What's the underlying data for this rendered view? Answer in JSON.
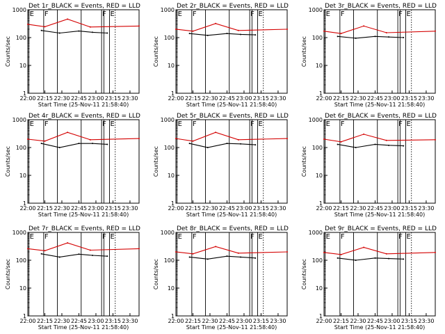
{
  "chart_data": [
    {
      "type": "line",
      "title": "Det 1r_BLACK = Events, RED = LLD",
      "xlabel": "Start Time (25-Nov-11 21:58:40)",
      "ylabel": "Counts/sec",
      "xticks": [
        "22:00",
        "22:15",
        "22:30",
        "22:45",
        "23:00",
        "23:15",
        "23:30"
      ],
      "yticks": [
        "1",
        "10",
        "100",
        "1000"
      ],
      "ylog": true,
      "xlim": [
        "22:00",
        "23:38"
      ],
      "ylim": [
        1,
        1000
      ],
      "markers": [
        "E",
        "F",
        "F",
        "E"
      ],
      "series": [
        {
          "name": "Events",
          "color": "#000000",
          "values": [
            [
              22,
              12,
              180
            ],
            [
              22,
              28,
              145
            ],
            [
              22,
              45,
              172
            ],
            [
              22,
              57,
              155
            ],
            [
              23,
              10,
              145
            ]
          ]
        },
        {
          "name": "LLD",
          "color": "#d40000",
          "values": [
            [
              22,
              0,
              300
            ],
            [
              22,
              15,
              245
            ],
            [
              22,
              35,
              460
            ],
            [
              22,
              55,
              240
            ],
            [
              23,
              38,
              260
            ]
          ]
        }
      ]
    },
    {
      "type": "line",
      "title": "Det 2r_BLACK = Events, RED = LLD",
      "xlabel": "Start Time (25-Nov-11 21:58:40)",
      "ylabel": "Counts/sec",
      "xticks": [
        "22:00",
        "22:15",
        "22:30",
        "22:45",
        "23:00",
        "23:15",
        "23:30"
      ],
      "yticks": [
        "1",
        "10",
        "100",
        "1000"
      ],
      "ylog": true,
      "xlim": [
        "22:00",
        "23:38"
      ],
      "ylim": [
        1,
        1000
      ],
      "markers": [
        "E",
        "F",
        "F",
        "E"
      ],
      "series": [
        {
          "name": "Events",
          "color": "#000000",
          "values": [
            [
              22,
              12,
              140
            ],
            [
              22,
              28,
              120
            ],
            [
              22,
              45,
              140
            ],
            [
              22,
              57,
              130
            ],
            [
              23,
              10,
              125
            ]
          ]
        },
        {
          "name": "LLD",
          "color": "#d40000",
          "values": [
            [
              22,
              0,
              200
            ],
            [
              22,
              15,
              170
            ],
            [
              22,
              35,
              320
            ],
            [
              22,
              55,
              180
            ],
            [
              23,
              38,
              200
            ]
          ]
        }
      ]
    },
    {
      "type": "line",
      "title": "Det 3r_BLACK = Events, RED = LLD",
      "xlabel": "Start Time (25-Nov-11 21:58:40)",
      "ylabel": "Counts/sec",
      "xticks": [
        "22:00",
        "22:15",
        "22:30",
        "22:45",
        "23:00",
        "23:15",
        "23:30"
      ],
      "yticks": [
        "1",
        "10",
        "100",
        "1000"
      ],
      "ylog": true,
      "xlim": [
        "22:00",
        "23:38"
      ],
      "ylim": [
        1,
        1000
      ],
      "markers": [
        "E",
        "F",
        "F",
        "E"
      ],
      "series": [
        {
          "name": "Events",
          "color": "#000000",
          "values": [
            [
              22,
              12,
              110
            ],
            [
              22,
              28,
              95
            ],
            [
              22,
              45,
              110
            ],
            [
              22,
              57,
              105
            ],
            [
              23,
              10,
              100
            ]
          ]
        },
        {
          "name": "LLD",
          "color": "#d40000",
          "values": [
            [
              22,
              0,
              170
            ],
            [
              22,
              15,
              140
            ],
            [
              22,
              35,
              260
            ],
            [
              22,
              55,
              150
            ],
            [
              23,
              38,
              170
            ]
          ]
        }
      ]
    },
    {
      "type": "line",
      "title": "Det 4r_BLACK = Events, RED = LLD",
      "xlabel": "Start Time (25-Nov-11 21:58:40)",
      "ylabel": "Counts/sec",
      "xticks": [
        "22:00",
        "22:15",
        "22:30",
        "22:45",
        "23:00",
        "23:15",
        "23:30"
      ],
      "yticks": [
        "1",
        "10",
        "100",
        "1000"
      ],
      "ylog": true,
      "xlim": [
        "22:00",
        "23:38"
      ],
      "ylim": [
        1,
        1000
      ],
      "markers": [
        "E",
        "F",
        "F",
        "E"
      ],
      "series": [
        {
          "name": "Events",
          "color": "#000000",
          "values": [
            [
              22,
              12,
              140
            ],
            [
              22,
              28,
              100
            ],
            [
              22,
              45,
              140
            ],
            [
              22,
              57,
              140
            ],
            [
              23,
              10,
              130
            ]
          ]
        },
        {
          "name": "LLD",
          "color": "#d40000",
          "values": [
            [
              22,
              0,
              200
            ],
            [
              22,
              15,
              170
            ],
            [
              22,
              35,
              350
            ],
            [
              22,
              55,
              190
            ],
            [
              23,
              38,
              210
            ]
          ]
        }
      ]
    },
    {
      "type": "line",
      "title": "Det 5r_BLACK = Events, RED = LLD",
      "xlabel": "Start Time (25-Nov-11 21:58:40)",
      "ylabel": "Counts/sec",
      "xticks": [
        "22:00",
        "22:15",
        "22:30",
        "22:45",
        "23:00",
        "23:15",
        "23:30"
      ],
      "yticks": [
        "1",
        "10",
        "100",
        "1000"
      ],
      "ylog": true,
      "xlim": [
        "22:00",
        "23:38"
      ],
      "ylim": [
        1,
        1000
      ],
      "markers": [
        "E",
        "F",
        "F",
        "E"
      ],
      "series": [
        {
          "name": "Events",
          "color": "#000000",
          "values": [
            [
              22,
              12,
              140
            ],
            [
              22,
              28,
              100
            ],
            [
              22,
              45,
              140
            ],
            [
              22,
              57,
              135
            ],
            [
              23,
              10,
              125
            ]
          ]
        },
        {
          "name": "LLD",
          "color": "#d40000",
          "values": [
            [
              22,
              0,
              210
            ],
            [
              22,
              15,
              170
            ],
            [
              22,
              35,
              350
            ],
            [
              22,
              55,
              190
            ],
            [
              23,
              38,
              210
            ]
          ]
        }
      ]
    },
    {
      "type": "line",
      "title": "Det 6r_BLACK = Events, RED = LLD",
      "xlabel": "Start Time (25-Nov-11 21:58:40)",
      "ylabel": "Counts/sec",
      "xticks": [
        "22:00",
        "22:15",
        "22:30",
        "22:45",
        "23:00",
        "23:15",
        "23:30"
      ],
      "yticks": [
        "1",
        "10",
        "100",
        "1000"
      ],
      "ylog": true,
      "xlim": [
        "22:00",
        "23:38"
      ],
      "ylim": [
        1,
        1000
      ],
      "markers": [
        "E",
        "F",
        "F",
        "E"
      ],
      "series": [
        {
          "name": "Events",
          "color": "#000000",
          "values": [
            [
              22,
              12,
              130
            ],
            [
              22,
              28,
              100
            ],
            [
              22,
              45,
              130
            ],
            [
              22,
              57,
              120
            ],
            [
              23,
              10,
              115
            ]
          ]
        },
        {
          "name": "LLD",
          "color": "#d40000",
          "values": [
            [
              22,
              0,
              200
            ],
            [
              22,
              15,
              160
            ],
            [
              22,
              35,
              300
            ],
            [
              22,
              55,
              180
            ],
            [
              23,
              38,
              190
            ]
          ]
        }
      ]
    },
    {
      "type": "line",
      "title": "Det 7r_BLACK = Events, RED = LLD",
      "xlabel": "Start Time (25-Nov-11 21:58:40)",
      "ylabel": "Counts/sec",
      "xticks": [
        "22:00",
        "22:15",
        "22:30",
        "22:45",
        "23:00",
        "23:15",
        "23:30"
      ],
      "yticks": [
        "1",
        "10",
        "100",
        "1000"
      ],
      "ylog": true,
      "xlim": [
        "22:00",
        "23:38"
      ],
      "ylim": [
        1,
        1000
      ],
      "markers": [
        "E",
        "F",
        "F",
        "E"
      ],
      "series": [
        {
          "name": "Events",
          "color": "#000000",
          "values": [
            [
              22,
              12,
              170
            ],
            [
              22,
              28,
              130
            ],
            [
              22,
              45,
              165
            ],
            [
              22,
              57,
              150
            ],
            [
              23,
              10,
              140
            ]
          ]
        },
        {
          "name": "LLD",
          "color": "#d40000",
          "values": [
            [
              22,
              0,
              260
            ],
            [
              22,
              15,
              220
            ],
            [
              22,
              35,
              420
            ],
            [
              22,
              55,
              230
            ],
            [
              23,
              38,
              260
            ]
          ]
        }
      ]
    },
    {
      "type": "line",
      "title": "Det 8r_BLACK = Events, RED = LLD",
      "xlabel": "Start Time (25-Nov-11 21:58:40)",
      "ylabel": "Counts/sec",
      "xticks": [
        "22:00",
        "22:15",
        "22:30",
        "22:45",
        "23:00",
        "23:15",
        "23:30"
      ],
      "yticks": [
        "1",
        "10",
        "100",
        "1000"
      ],
      "ylog": true,
      "xlim": [
        "22:00",
        "23:38"
      ],
      "ylim": [
        1,
        1000
      ],
      "markers": [
        "E",
        "F",
        "F",
        "E"
      ],
      "series": [
        {
          "name": "Events",
          "color": "#000000",
          "values": [
            [
              22,
              12,
              130
            ],
            [
              22,
              28,
              110
            ],
            [
              22,
              45,
              140
            ],
            [
              22,
              57,
              130
            ],
            [
              23,
              10,
              120
            ]
          ]
        },
        {
          "name": "LLD",
          "color": "#d40000",
          "values": [
            [
              22,
              0,
              200
            ],
            [
              22,
              15,
              170
            ],
            [
              22,
              35,
              310
            ],
            [
              22,
              55,
              180
            ],
            [
              23,
              38,
              200
            ]
          ]
        }
      ]
    },
    {
      "type": "line",
      "title": "Det 9r_BLACK = Events, RED = LLD",
      "xlabel": "Start Time (25-Nov-11 21:58:40)",
      "ylabel": "Counts/sec",
      "xticks": [
        "22:00",
        "22:15",
        "22:30",
        "22:45",
        "23:00",
        "23:15",
        "23:30"
      ],
      "yticks": [
        "1",
        "10",
        "100",
        "1000"
      ],
      "ylog": true,
      "xlim": [
        "22:00",
        "23:38"
      ],
      "ylim": [
        1,
        1000
      ],
      "markers": [
        "E",
        "F",
        "F",
        "E"
      ],
      "series": [
        {
          "name": "Events",
          "color": "#000000",
          "values": [
            [
              22,
              12,
              120
            ],
            [
              22,
              28,
              100
            ],
            [
              22,
              45,
              120
            ],
            [
              22,
              57,
              115
            ],
            [
              23,
              10,
              110
            ]
          ]
        },
        {
          "name": "LLD",
          "color": "#d40000",
          "values": [
            [
              22,
              0,
              190
            ],
            [
              22,
              15,
              160
            ],
            [
              22,
              35,
              290
            ],
            [
              22,
              55,
              170
            ],
            [
              23,
              38,
              190
            ]
          ]
        }
      ]
    }
  ]
}
